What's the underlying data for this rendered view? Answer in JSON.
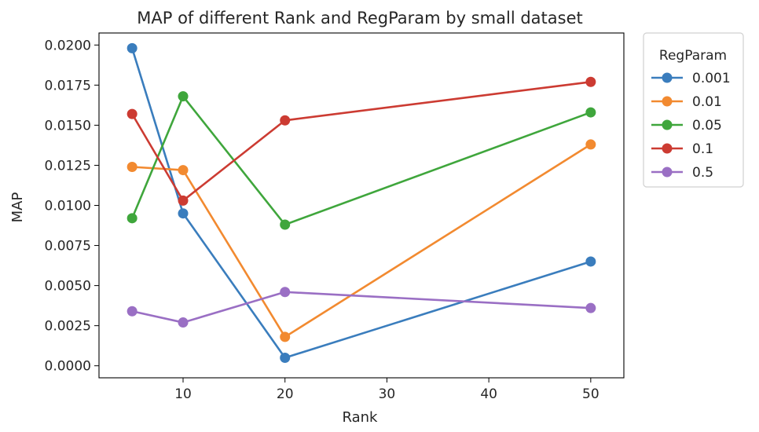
{
  "chart_data": {
    "type": "line",
    "title": "MAP of different Rank and RegParam by small dataset",
    "xlabel": "Rank",
    "ylabel": "MAP",
    "x": [
      5,
      10,
      20,
      50
    ],
    "xlim": [
      1.75,
      53.25
    ],
    "ylim": [
      -0.00075,
      0.02075
    ],
    "xticks": [
      10,
      20,
      30,
      40,
      50
    ],
    "xtick_labels": [
      "10",
      "20",
      "30",
      "40",
      "50"
    ],
    "yticks": [
      0,
      0.0025,
      0.005,
      0.0075,
      0.01,
      0.0125,
      0.015,
      0.0175,
      0.02
    ],
    "ytick_labels": [
      "0.0000",
      "0.0025",
      "0.0050",
      "0.0075",
      "0.0100",
      "0.0125",
      "0.0150",
      "0.0175",
      "0.0200"
    ],
    "grid": false,
    "legend_title": "RegParam",
    "legend_placement": "outside-upper-right",
    "series": [
      {
        "name": "0.001",
        "color": "#3a7dbd",
        "values": [
          0.0198,
          0.0095,
          0.0005,
          0.0065
        ]
      },
      {
        "name": "0.01",
        "color": "#f28a30",
        "values": [
          0.0124,
          0.0122,
          0.0018,
          0.0138
        ]
      },
      {
        "name": "0.05",
        "color": "#3fa63c",
        "values": [
          0.0092,
          0.0168,
          0.0088,
          0.0158
        ]
      },
      {
        "name": "0.1",
        "color": "#cc3b32",
        "values": [
          0.0157,
          0.0103,
          0.0153,
          0.0177
        ]
      },
      {
        "name": "0.5",
        "color": "#9a6fc4",
        "values": [
          0.0034,
          0.0027,
          0.0046,
          0.0036
        ]
      }
    ]
  }
}
